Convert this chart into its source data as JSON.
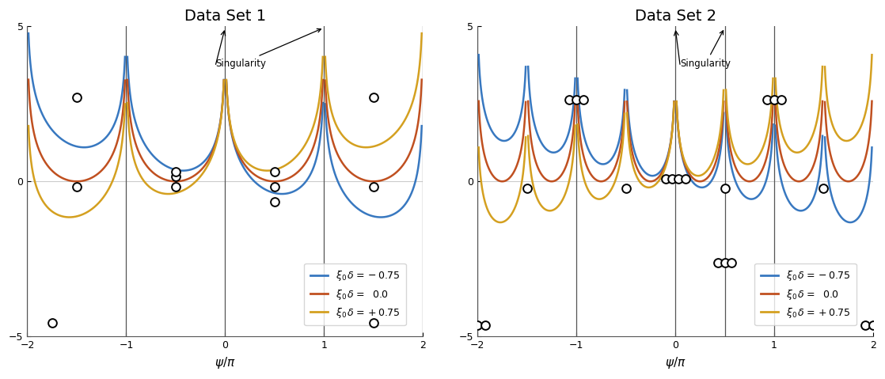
{
  "title1": "Data Set 1",
  "title2": "Data Set 2",
  "xlabel": "$\\psi/\\pi$",
  "ylim": [
    -5,
    5
  ],
  "xlim": [
    -2,
    2
  ],
  "xticks": [
    -2,
    -1,
    0,
    1,
    2
  ],
  "yticks": [
    -5,
    0,
    5
  ],
  "deltas": [
    -0.75,
    0.0,
    0.75
  ],
  "color_blue": "#3878C0",
  "color_red": "#C05020",
  "color_yellow": "#D4A020",
  "legend_labels": [
    "$\\xi_0\\,\\delta = -0.75$",
    "$\\xi_0\\,\\delta =\\ \\ 0.0$",
    "$\\xi_0\\,\\delta = +0.75$"
  ],
  "singularity_label": "Singularity",
  "vlines_ds1": [
    -2,
    -1,
    0,
    1,
    2
  ],
  "vlines_ds2": [
    -2,
    -1,
    0,
    1
  ],
  "ds1_ann_arrow1": [
    0.0,
    4.95
  ],
  "ds1_ann_arrow2": [
    1.0,
    4.95
  ],
  "ds1_ann_text": [
    -0.1,
    3.7
  ],
  "ds2_ann_arrow1": [
    0.0,
    4.95
  ],
  "ds2_ann_arrow2": [
    0.5,
    4.95
  ],
  "ds2_ann_text": [
    0.05,
    3.7
  ],
  "ds1_circles_blue": [
    [
      -1.75,
      -4.55
    ],
    [
      -0.5,
      0.15
    ],
    [
      0.5,
      -0.65
    ],
    [
      1.5,
      -4.55
    ]
  ],
  "ds1_circles_red": [
    [
      -1.5,
      -0.18
    ],
    [
      -0.5,
      -0.18
    ],
    [
      0.5,
      -0.18
    ],
    [
      1.5,
      -0.18
    ]
  ],
  "ds1_circles_yellow": [
    [
      -1.5,
      2.7
    ],
    [
      -0.5,
      0.32
    ],
    [
      0.5,
      0.32
    ],
    [
      1.5,
      2.7
    ]
  ],
  "ds2_circles_blue": [
    [
      -2.08,
      -4.62
    ],
    [
      -2.0,
      -4.62
    ],
    [
      -1.92,
      -4.62
    ],
    [
      0.93,
      2.62
    ],
    [
      1.0,
      2.62
    ],
    [
      1.07,
      2.62
    ],
    [
      1.92,
      -4.62
    ],
    [
      2.0,
      -4.62
    ],
    [
      2.08,
      -4.62
    ]
  ],
  "ds2_circles_red": [
    [
      -1.5,
      -0.22
    ],
    [
      -0.5,
      -0.22
    ],
    [
      0.5,
      -0.22
    ],
    [
      1.5,
      -0.22
    ]
  ],
  "ds2_circles_yellow": [
    [
      -1.07,
      2.62
    ],
    [
      -1.0,
      2.62
    ],
    [
      -0.93,
      2.62
    ],
    [
      -0.1,
      0.08
    ],
    [
      -0.03,
      0.08
    ],
    [
      0.03,
      0.08
    ],
    [
      0.1,
      0.08
    ],
    [
      0.43,
      -2.62
    ],
    [
      0.5,
      -2.62
    ],
    [
      0.57,
      -2.62
    ]
  ],
  "circle_size": 60,
  "linewidth": 1.8,
  "eps": 0.012,
  "zero_line_color": "#cccccc",
  "vline_color": "#555555",
  "spine_color": "#555555",
  "legend_fontsize": 9,
  "title_fontsize": 14,
  "xlabel_fontsize": 11,
  "tick_labelsize": 9
}
